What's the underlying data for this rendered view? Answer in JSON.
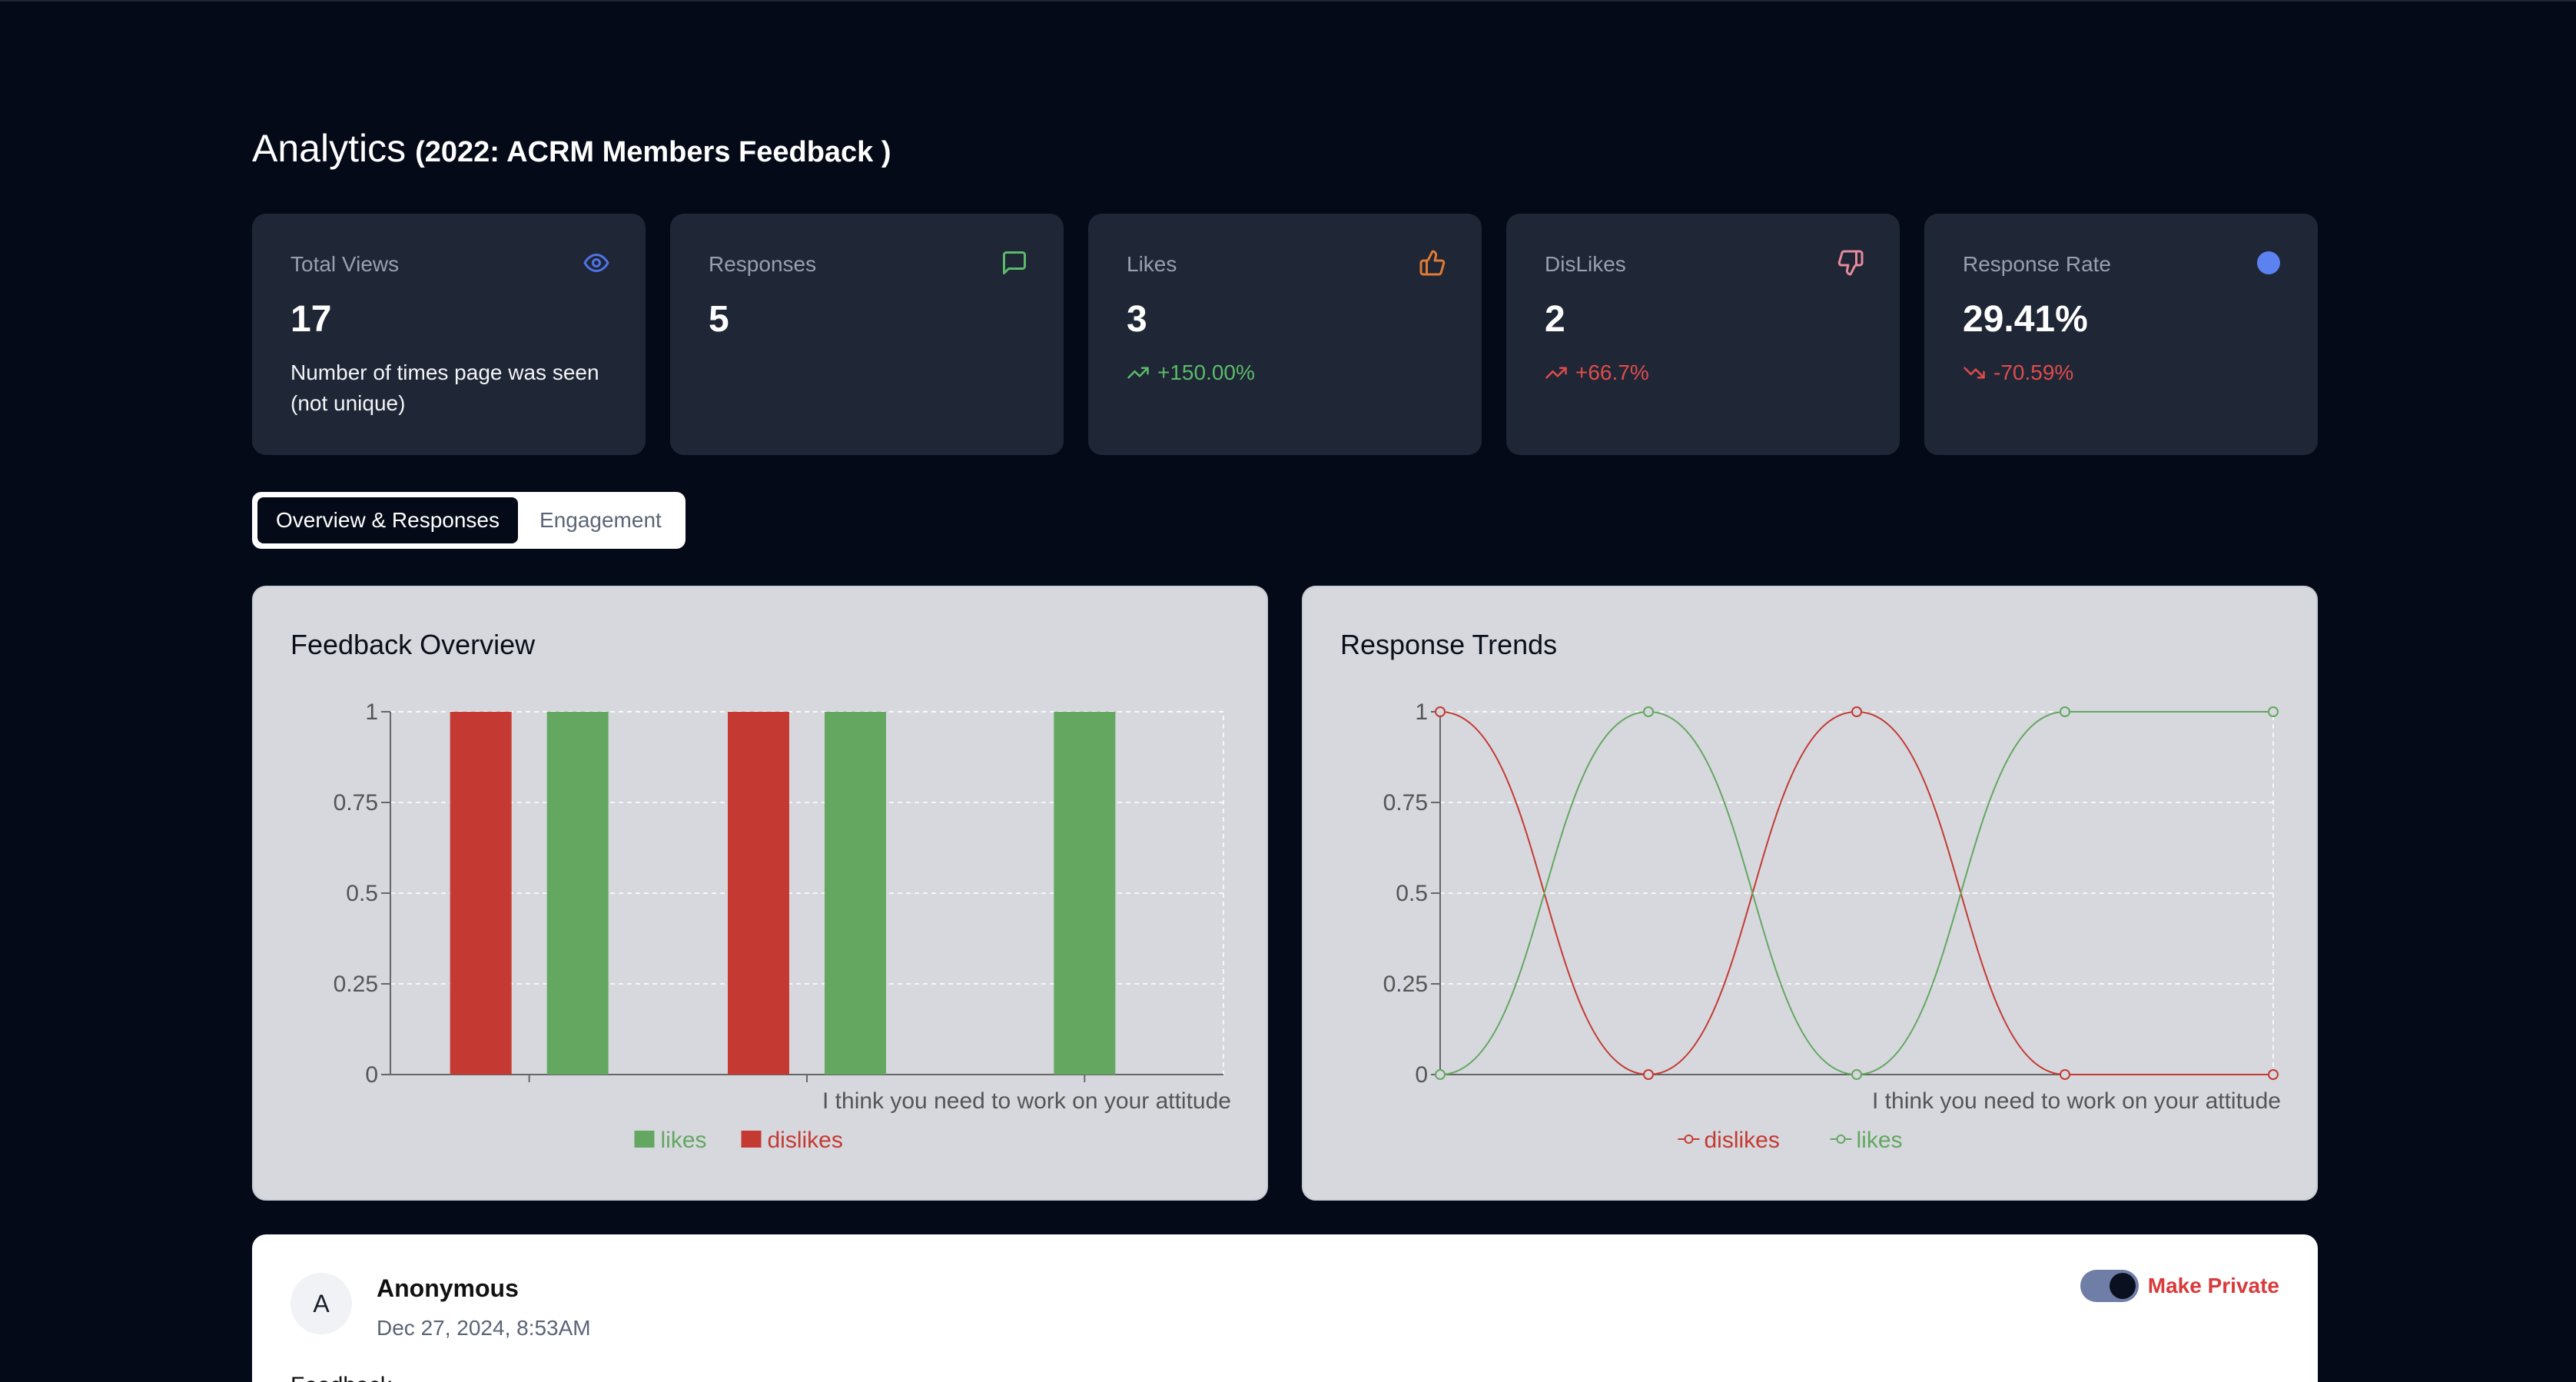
{
  "header": {
    "title": "Analytics",
    "subtitle": "(2022: ACRM Members Feedback )"
  },
  "stats": [
    {
      "label": "Total Views",
      "value": "17",
      "description": "Number of times page was seen (not unique)",
      "icon": "eye-icon",
      "icon_color": "#4f74e8"
    },
    {
      "label": "Responses",
      "value": "5",
      "icon": "message-icon",
      "icon_color": "#5bbb6a"
    },
    {
      "label": "Likes",
      "value": "3",
      "trend": "+150.00%",
      "trend_direction": "up",
      "trend_color": "#5bbb6a",
      "icon": "thumbs-up-icon",
      "icon_color": "#e07a34"
    },
    {
      "label": "DisLikes",
      "value": "2",
      "trend": "+66.7%",
      "trend_direction": "up",
      "trend_color": "#e04c4c",
      "icon": "thumbs-down-icon",
      "icon_color": "#e58a9a"
    },
    {
      "label": "Response Rate",
      "value": "29.41%",
      "trend": "-70.59%",
      "trend_direction": "down",
      "trend_color": "#e04c4c",
      "icon": "circle-icon",
      "icon_color": "#5b82f0"
    }
  ],
  "tabs": [
    {
      "label": "Overview & Responses",
      "active": true
    },
    {
      "label": "Engagement",
      "active": false
    }
  ],
  "charts": {
    "overview_title": "Feedback Overview",
    "trends_title": "Response Trends"
  },
  "chart_data": [
    {
      "type": "bar",
      "title": "Feedback Overview",
      "categories": [
        "",
        "",
        "I think you need to work on your attitude"
      ],
      "series": [
        {
          "name": "likes",
          "color": "#64a760",
          "values": [
            1,
            1,
            1
          ]
        },
        {
          "name": "dislikes",
          "color": "#c43a32",
          "values": [
            1,
            1,
            0
          ]
        }
      ],
      "ylim": [
        0,
        1
      ],
      "yticks": [
        "0",
        "0.25",
        "0.5",
        "0.75",
        "1"
      ],
      "grid": true,
      "legend": "bottom"
    },
    {
      "type": "line",
      "title": "Response Trends",
      "x": [
        "",
        "",
        "",
        "",
        "I think you need to work on your attitude"
      ],
      "series": [
        {
          "name": "dislikes",
          "color": "#c43a32",
          "values": [
            1,
            0,
            1,
            0,
            0
          ]
        },
        {
          "name": "likes",
          "color": "#64a760",
          "values": [
            0,
            1,
            0,
            1,
            1
          ]
        }
      ],
      "ylim": [
        0,
        1
      ],
      "yticks": [
        "0",
        "0.25",
        "0.5",
        "0.75",
        "1"
      ],
      "grid": true,
      "legend": "bottom"
    }
  ],
  "response": {
    "avatar_initial": "A",
    "author": "Anonymous",
    "date": "Dec 27, 2024, 8:53AM",
    "privacy_label": "Make Private",
    "privacy_toggle_on": true,
    "text": "Feedback..."
  }
}
